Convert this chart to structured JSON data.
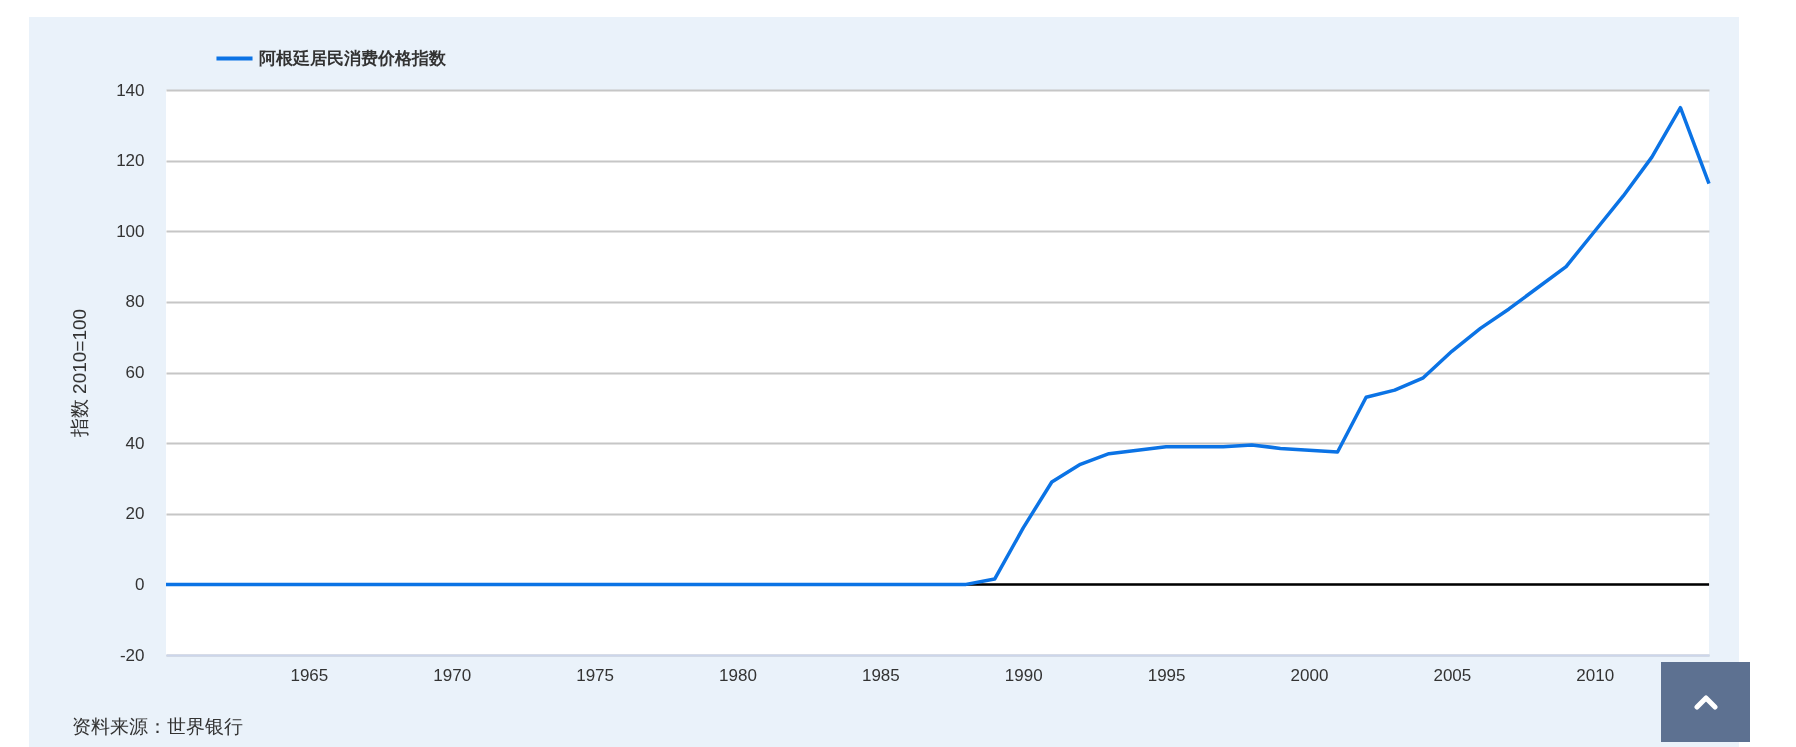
{
  "chart_data": {
    "type": "line",
    "x": [
      1960,
      1961,
      1962,
      1963,
      1964,
      1965,
      1966,
      1967,
      1968,
      1969,
      1970,
      1971,
      1972,
      1973,
      1974,
      1975,
      1976,
      1977,
      1978,
      1979,
      1980,
      1981,
      1982,
      1983,
      1984,
      1985,
      1986,
      1987,
      1988,
      1989,
      1990,
      1991,
      1992,
      1993,
      1994,
      1995,
      1996,
      1997,
      1998,
      1999,
      2000,
      2001,
      2002,
      2003,
      2004,
      2005,
      2006,
      2007,
      2008,
      2009,
      2010,
      2011,
      2012,
      2013,
      2014
    ],
    "series": [
      {
        "name": "阿根廷居民消费价格指数",
        "color": "#0b73e5",
        "values": [
          0,
          0,
          0,
          0,
          0,
          0,
          0,
          0,
          0,
          0,
          0,
          0,
          0,
          0,
          0,
          0,
          0,
          0,
          0,
          0,
          0,
          0,
          0,
          0,
          0,
          0,
          0,
          0,
          0,
          1.5,
          16,
          29,
          34,
          37,
          38,
          39,
          39,
          39,
          39.5,
          38.5,
          38,
          37.5,
          53,
          55,
          58.5,
          66,
          72.5,
          78,
          84,
          90,
          100,
          110,
          121,
          135,
          113.5
        ]
      }
    ],
    "xlim": [
      1960,
      2014
    ],
    "xticks": [
      1965,
      1970,
      1975,
      1980,
      1985,
      1990,
      1995,
      2000,
      2005,
      2010
    ],
    "ylim": [
      -20,
      140
    ],
    "yticks": [
      -20,
      0,
      20,
      40,
      60,
      80,
      100,
      120,
      140
    ],
    "ylabel": "指数 2010=100",
    "ref_lines": [
      {
        "axis": "y",
        "value": 0,
        "color": "#000000"
      }
    ],
    "grid": "y",
    "legend": "top left",
    "annotations": [
      "资料来源：世界银行"
    ]
  }
}
